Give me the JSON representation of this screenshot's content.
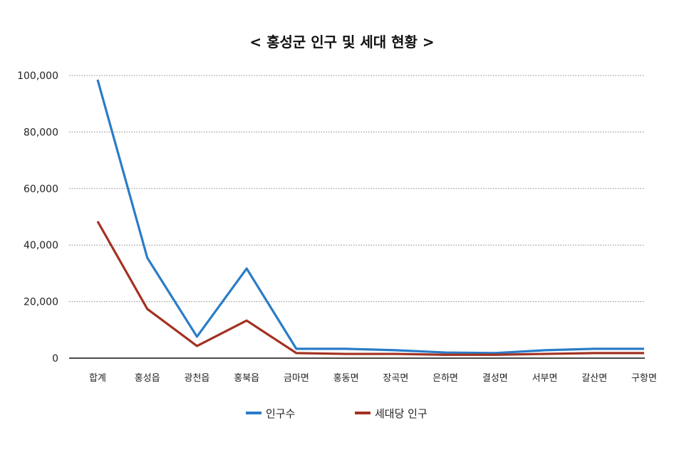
{
  "chart_data": {
    "type": "line",
    "title": "< 홍성군 인구 및 세대 현황 >",
    "xlabel": "",
    "ylabel": "",
    "ylim": [
      0,
      100000
    ],
    "yticks": [
      0,
      20000,
      40000,
      60000,
      80000,
      100000
    ],
    "ytick_labels": [
      "0",
      "20,000",
      "40,000",
      "60,000",
      "80,000",
      "100,000"
    ],
    "grid": true,
    "legend_position": "bottom",
    "categories": [
      "합계",
      "홍성읍",
      "광천읍",
      "홍북읍",
      "금마면",
      "홍동면",
      "장곡면",
      "은하면",
      "결성면",
      "서부면",
      "갈산면",
      "구항면"
    ],
    "series": [
      {
        "name": "인구수",
        "color": "#2a7cc7",
        "values": [
          98500,
          35500,
          7600,
          31700,
          3300,
          3300,
          2800,
          2000,
          1800,
          2800,
          3300,
          3300
        ]
      },
      {
        "name": "세대당 인구",
        "color": "#a33222",
        "values": [
          48400,
          17400,
          4300,
          13300,
          1800,
          1500,
          1500,
          1200,
          1200,
          1500,
          1800,
          1800
        ]
      }
    ]
  }
}
